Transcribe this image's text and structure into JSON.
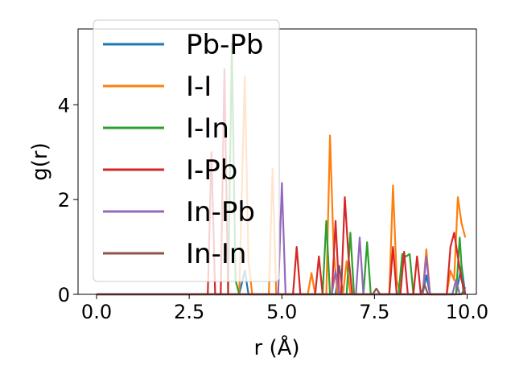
{
  "chart_data": {
    "type": "line",
    "xlabel": "r (Å)",
    "ylabel": "g(r)",
    "xlim": [
      -0.5,
      10.25
    ],
    "ylim": [
      0,
      5.6
    ],
    "xticks": [
      0.0,
      2.5,
      5.0,
      7.5,
      10.0
    ],
    "xtick_labels": [
      "0.0",
      "2.5",
      "5.0",
      "7.5",
      "10.0"
    ],
    "yticks": [
      0,
      2,
      4
    ],
    "ytick_labels": [
      "0",
      "2",
      "4"
    ],
    "grid": false,
    "legend_position": "top-left",
    "series": [
      {
        "name": "Pb-Pb",
        "color": "#1f77b4",
        "points": [
          [
            0,
            0
          ],
          [
            3.85,
            0
          ],
          [
            4.0,
            0.5
          ],
          [
            4.1,
            0
          ],
          [
            6.45,
            0
          ],
          [
            6.55,
            0.6
          ],
          [
            6.65,
            0
          ],
          [
            8.8,
            0
          ],
          [
            8.9,
            0.4
          ],
          [
            9.0,
            0
          ],
          [
            9.7,
            0
          ],
          [
            9.85,
            0.6
          ],
          [
            9.95,
            0
          ]
        ]
      },
      {
        "name": "I-I",
        "color": "#ff7f0e",
        "points": [
          [
            0,
            0
          ],
          [
            3.85,
            0
          ],
          [
            4.0,
            4.6
          ],
          [
            4.1,
            0.7
          ],
          [
            4.2,
            0
          ],
          [
            4.65,
            0
          ],
          [
            4.75,
            2.65
          ],
          [
            4.85,
            0
          ],
          [
            5.7,
            0
          ],
          [
            5.8,
            0.45
          ],
          [
            5.9,
            0
          ],
          [
            6.2,
            0
          ],
          [
            6.3,
            3.35
          ],
          [
            6.4,
            0.9
          ],
          [
            6.5,
            0
          ],
          [
            6.65,
            0
          ],
          [
            6.75,
            0.7
          ],
          [
            6.85,
            0
          ],
          [
            7.9,
            0
          ],
          [
            8.0,
            2.3
          ],
          [
            8.1,
            0.3
          ],
          [
            8.2,
            0
          ],
          [
            8.8,
            0
          ],
          [
            8.9,
            0.95
          ],
          [
            9.0,
            0
          ],
          [
            9.45,
            0
          ],
          [
            9.55,
            0.5
          ],
          [
            9.65,
            0.3
          ],
          [
            9.75,
            2.05
          ],
          [
            9.85,
            1.5
          ],
          [
            9.95,
            1.2
          ]
        ]
      },
      {
        "name": "I-In",
        "color": "#2ca02c",
        "points": [
          [
            0,
            0
          ],
          [
            3.55,
            0
          ],
          [
            3.65,
            5.3
          ],
          [
            3.75,
            0.3
          ],
          [
            3.85,
            0
          ],
          [
            6.1,
            0
          ],
          [
            6.2,
            1.55
          ],
          [
            6.3,
            0
          ],
          [
            6.75,
            0
          ],
          [
            6.85,
            1.3
          ],
          [
            6.95,
            0
          ],
          [
            7.2,
            0
          ],
          [
            7.3,
            1.1
          ],
          [
            7.4,
            0
          ],
          [
            8.15,
            0
          ],
          [
            8.25,
            0.85
          ],
          [
            8.35,
            0.8
          ],
          [
            8.45,
            0.85
          ],
          [
            8.55,
            0
          ],
          [
            9.7,
            0
          ],
          [
            9.8,
            1.2
          ],
          [
            9.9,
            0
          ]
        ]
      },
      {
        "name": "I-Pb",
        "color": "#d62728",
        "points": [
          [
            0,
            0
          ],
          [
            3.0,
            0
          ],
          [
            3.1,
            3.0
          ],
          [
            3.2,
            0
          ],
          [
            3.35,
            0
          ],
          [
            3.45,
            4.75
          ],
          [
            3.55,
            0
          ],
          [
            5.3,
            0
          ],
          [
            5.4,
            1.0
          ],
          [
            5.5,
            0
          ],
          [
            5.9,
            0
          ],
          [
            6.0,
            0.8
          ],
          [
            6.1,
            0
          ],
          [
            6.35,
            0
          ],
          [
            6.45,
            1.55
          ],
          [
            6.55,
            0
          ],
          [
            6.6,
            0
          ],
          [
            6.7,
            2.05
          ],
          [
            6.8,
            0.8
          ],
          [
            6.9,
            0
          ],
          [
            7.9,
            0
          ],
          [
            8.0,
            1.0
          ],
          [
            8.1,
            0
          ],
          [
            8.2,
            0
          ],
          [
            8.3,
            0.9
          ],
          [
            8.4,
            0
          ],
          [
            8.55,
            0
          ],
          [
            8.65,
            0.8
          ],
          [
            8.75,
            0
          ],
          [
            9.45,
            0
          ],
          [
            9.55,
            1.0
          ],
          [
            9.65,
            1.3
          ],
          [
            9.75,
            0.8
          ],
          [
            9.85,
            0.3
          ],
          [
            9.95,
            0
          ]
        ]
      },
      {
        "name": "In-Pb",
        "color": "#9467bd",
        "points": [
          [
            0,
            0
          ],
          [
            4.9,
            0
          ],
          [
            5.0,
            2.35
          ],
          [
            5.1,
            0
          ],
          [
            6.35,
            0
          ],
          [
            6.45,
            0.5
          ],
          [
            6.55,
            0
          ],
          [
            7.0,
            0
          ],
          [
            7.1,
            1.2
          ],
          [
            7.2,
            0
          ],
          [
            8.8,
            0
          ],
          [
            8.9,
            0.8
          ],
          [
            9.0,
            0
          ],
          [
            9.6,
            0
          ],
          [
            9.7,
            0.3
          ],
          [
            9.8,
            0
          ]
        ]
      },
      {
        "name": "In-In",
        "color": "#8c564b",
        "points": [
          [
            0,
            0
          ],
          [
            7.45,
            0
          ],
          [
            7.55,
            0.12
          ],
          [
            7.65,
            0
          ],
          [
            8.75,
            0
          ],
          [
            8.85,
            0.2
          ],
          [
            8.95,
            0
          ],
          [
            9.85,
            0
          ],
          [
            9.95,
            0.15
          ]
        ]
      }
    ]
  }
}
